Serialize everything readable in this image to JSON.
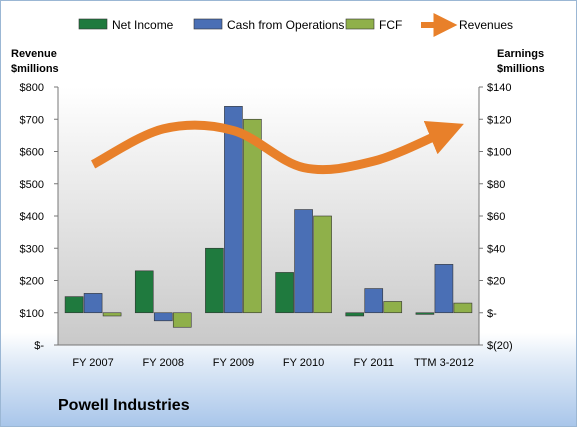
{
  "company": "Powell Industries",
  "colors": {
    "net_income": "#1f7a3e",
    "cash_from_operations": "#4a6fb5",
    "fcf": "#8fb04a",
    "revenues": "#e8802a"
  },
  "chart_data": {
    "type": "bar",
    "categories": [
      "FY 2007",
      "FY 2008",
      "FY 2009",
      "FY 2010",
      "FY 2011",
      "TTM 3-2012"
    ],
    "left_axis": {
      "title_lines": [
        "Revenue",
        "$millions"
      ],
      "ticks": [
        "$-",
        "$100",
        "$200",
        "$300",
        "$400",
        "$500",
        "$600",
        "$700",
        "$800"
      ],
      "ylim": [
        0,
        800
      ]
    },
    "right_axis": {
      "title_lines": [
        "Earnings",
        "$millions"
      ],
      "ticks": [
        "$(20)",
        "$-",
        "$20",
        "$40",
        "$60",
        "$80",
        "$100",
        "$120",
        "$140"
      ],
      "ylim": [
        -20,
        140
      ]
    },
    "legend": [
      {
        "name": "Net Income",
        "key": "net_income",
        "kind": "bar"
      },
      {
        "name": "Cash from Operations",
        "key": "cash_from_operations",
        "kind": "bar"
      },
      {
        "name": "FCF",
        "key": "fcf",
        "kind": "bar"
      },
      {
        "name": "Revenues",
        "key": "revenues",
        "kind": "arrow"
      }
    ],
    "legend_position": "top",
    "grid": false,
    "series": [
      {
        "name": "Net Income",
        "key": "net_income",
        "axis": "right",
        "values": [
          10,
          26,
          40,
          25,
          -2,
          -1
        ]
      },
      {
        "name": "Cash from Operations",
        "key": "cash_from_operations",
        "axis": "right",
        "values": [
          12,
          -5,
          128,
          64,
          15,
          30
        ]
      },
      {
        "name": "FCF",
        "key": "fcf",
        "axis": "right",
        "values": [
          -2,
          -9,
          120,
          60,
          7,
          6
        ]
      },
      {
        "name": "Revenues",
        "key": "revenues",
        "axis": "left",
        "type": "line",
        "values": [
          560,
          670,
          665,
          550,
          570,
          660
        ]
      }
    ]
  }
}
